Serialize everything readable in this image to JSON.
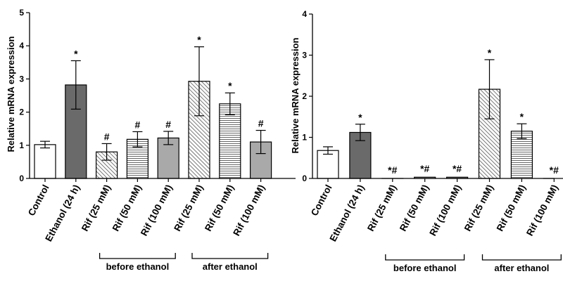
{
  "chart_data": [
    {
      "type": "bar",
      "ylabel": "Relative mRNA expression",
      "ylim": [
        0,
        5
      ],
      "yticks": [
        "0",
        "1",
        "2",
        "3",
        "4",
        "5"
      ],
      "categories": [
        "Control",
        "Ethanol (24 h)",
        "Rif (25 mM)",
        "Rif (50 mM)",
        "Rif (100 mM)",
        "Rif (25 mM)",
        "Rif (50 mM)",
        "Rif (100 mM)"
      ],
      "values": [
        1.02,
        2.82,
        0.8,
        1.18,
        1.22,
        2.93,
        2.25,
        1.1
      ],
      "errors": [
        0.1,
        0.73,
        0.25,
        0.23,
        0.2,
        1.04,
        0.33,
        0.35
      ],
      "annotations": [
        "",
        "*",
        "#",
        "#",
        "#",
        "*",
        "*",
        "#"
      ],
      "patterns": [
        "white",
        "dark",
        "diag",
        "horiz",
        "gray",
        "diag",
        "horiz",
        "gray"
      ],
      "groups": [
        {
          "label": "before ethanol",
          "from": 2,
          "to": 4
        },
        {
          "label": "after ethanol",
          "from": 5,
          "to": 7
        }
      ]
    },
    {
      "type": "bar",
      "ylabel": "Relative mRNA expression",
      "ylim": [
        0,
        4
      ],
      "yticks": [
        "0",
        "1",
        "2",
        "3",
        "4"
      ],
      "categories": [
        "Control",
        "Ethanol (24 h)",
        "Rif (25 mM)",
        "Rif (50 mM)",
        "Rif (100 mM)",
        "Rif (25 mM)",
        "Rif (50 mM)",
        "Rif (100 mM)"
      ],
      "values": [
        0.68,
        1.12,
        0.0,
        0.03,
        0.03,
        2.17,
        1.15,
        0.0
      ],
      "errors": [
        0.09,
        0.2,
        0,
        0,
        0,
        0.72,
        0.18,
        0
      ],
      "annotations": [
        "",
        "*",
        "*#",
        "*#",
        "*#",
        "*",
        "*",
        "*#"
      ],
      "patterns": [
        "white",
        "dark",
        "diag",
        "horiz",
        "gray",
        "diag",
        "horiz",
        "gray"
      ],
      "groups": [
        {
          "label": "before ethanol",
          "from": 2,
          "to": 4
        },
        {
          "label": "after ethanol",
          "from": 5,
          "to": 7
        }
      ]
    }
  ]
}
